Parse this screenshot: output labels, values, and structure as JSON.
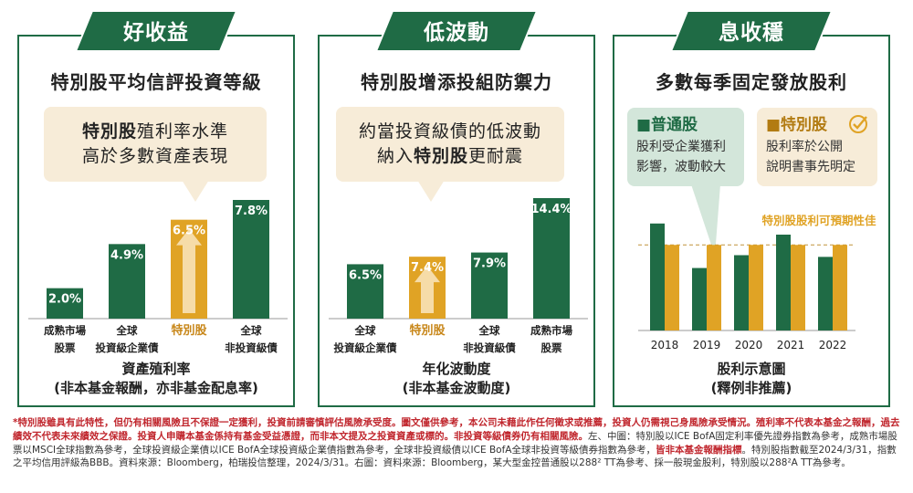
{
  "colors": {
    "green": "#1f6b45",
    "gold": "#e0a325",
    "gold_light": "#f7ecd8",
    "red": "#c0262d",
    "text": "#222222"
  },
  "panels": [
    {
      "banner": "好收益",
      "subtitle": "特別股平均信評投資等級",
      "bubble": {
        "line1_bold": "特別股",
        "line1_rest": "殖利率水準",
        "line2": "高於多數資產表現"
      },
      "axis_title_1": "資產殖利率",
      "axis_title_2": "(非本基金報酬，亦非基金配息率)"
    },
    {
      "banner": "低波動",
      "subtitle": "特別股增添投組防禦力",
      "bubble": {
        "line1": "約當投資級債的低波動",
        "line2_pre": "納入",
        "line2_bold": "特別股",
        "line2_rest": "更耐震"
      },
      "axis_title_1": "年化波動度",
      "axis_title_2": "(非本基金波動度)"
    },
    {
      "banner": "息收穩",
      "subtitle": "多數每季固定發放股利",
      "callout_common": {
        "title": "■普通股",
        "line1": "股利受企業獲利",
        "line2": "影響，波動較大"
      },
      "callout_pref": {
        "title": "■特別股",
        "line1": "股利率於公開",
        "line2": "說明書事先明定"
      },
      "axis_title_1": "股利示意圖",
      "axis_title_2": "(釋例非推薦)"
    }
  ],
  "chart_data": [
    {
      "type": "bar",
      "categories": [
        [
          "成熟市場",
          "股票"
        ],
        [
          "全球",
          "投資級企業債"
        ],
        [
          "特別股"
        ],
        [
          "全球",
          "非投資級債"
        ]
      ],
      "values": [
        2.0,
        4.9,
        6.5,
        7.8
      ],
      "value_labels": [
        "2.0%",
        "4.9%",
        "6.5%",
        "7.8%"
      ],
      "highlight_index": 2,
      "xlabel": "資產殖利率",
      "ylim": [
        0,
        8.5
      ]
    },
    {
      "type": "bar",
      "categories": [
        [
          "全球",
          "投資級企業債"
        ],
        [
          "特別股"
        ],
        [
          "全球",
          "非投資級債"
        ],
        [
          "成熟市場",
          "股票"
        ]
      ],
      "values": [
        6.5,
        7.4,
        7.9,
        14.4
      ],
      "value_labels": [
        "6.5%",
        "7.4%",
        "7.9%",
        "14.4%"
      ],
      "highlight_index": 1,
      "xlabel": "年化波動度",
      "ylim": [
        0,
        15
      ]
    },
    {
      "type": "bar",
      "categories": [
        "2018",
        "2019",
        "2020",
        "2021",
        "2022"
      ],
      "series": [
        {
          "name": "普通股",
          "values": [
            125,
            73,
            88,
            112,
            86
          ]
        },
        {
          "name": "特別股",
          "values": [
            100,
            100,
            100,
            100,
            100
          ]
        }
      ],
      "reference_line": {
        "value": 100,
        "label": "特別股股利可預期性佳"
      },
      "xlabel": "股利示意圖",
      "ylim": [
        0,
        160
      ]
    }
  ],
  "footnote": {
    "part1": "*特別股雖具有此特性，但仍有相關風險且不保證一定獲利，投資前請審慎評估風險承受度。圖文僅供參考，本公司未藉此作任何徵求或推薦，投資人仍需視己身風險承受情況。殖利率不代表本基金之報酬，過去績效不代表未來績效之保證。投資人申購本基金係持有基金受益憑證，而非本文提及之投資資產或標的。非投資等級債券仍有相關風險。",
    "part2": "左、中圖：特別股以ICE BofA固定利率優先證券指數為參考，成熟市場股票以MSCI全球指數為參考，全球投資級企業債以ICE BofA全球投資級企業債指數為參考，全球非投資級債以ICE BofA全球非投資等級債券指數為參考，",
    "part3": "皆非本基金報酬指標",
    "part4": "。特別股指數截至2024/3/31，指數之平均信用評級為BBB。資料來源：Bloomberg，柏瑞投信整理，2024/3/31。右圖：資料來源：Bloomberg，某大型金控普通股以288² TT為參考、採一般現金股利，特別股以288²A TT為參考。"
  }
}
